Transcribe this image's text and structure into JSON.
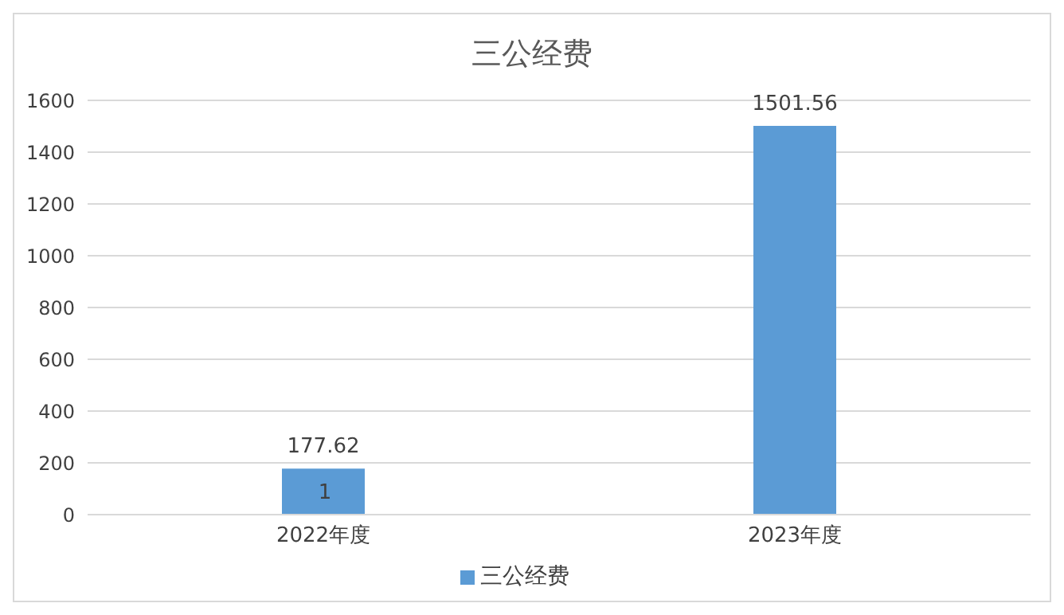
{
  "chart_data": {
    "type": "bar",
    "title": "三公经费",
    "categories": [
      "2022年度",
      "2023年度"
    ],
    "series": [
      {
        "name": "三公经费",
        "color": "#5b9bd5",
        "values": [
          177.62,
          1501.56
        ]
      }
    ],
    "ylim": [
      0,
      1600
    ],
    "yticks": [
      0,
      200,
      400,
      600,
      800,
      1000,
      1200,
      1400,
      1600
    ],
    "grid": "y",
    "legend": "bottom",
    "data_labels": true,
    "annotations": [
      "1"
    ]
  }
}
